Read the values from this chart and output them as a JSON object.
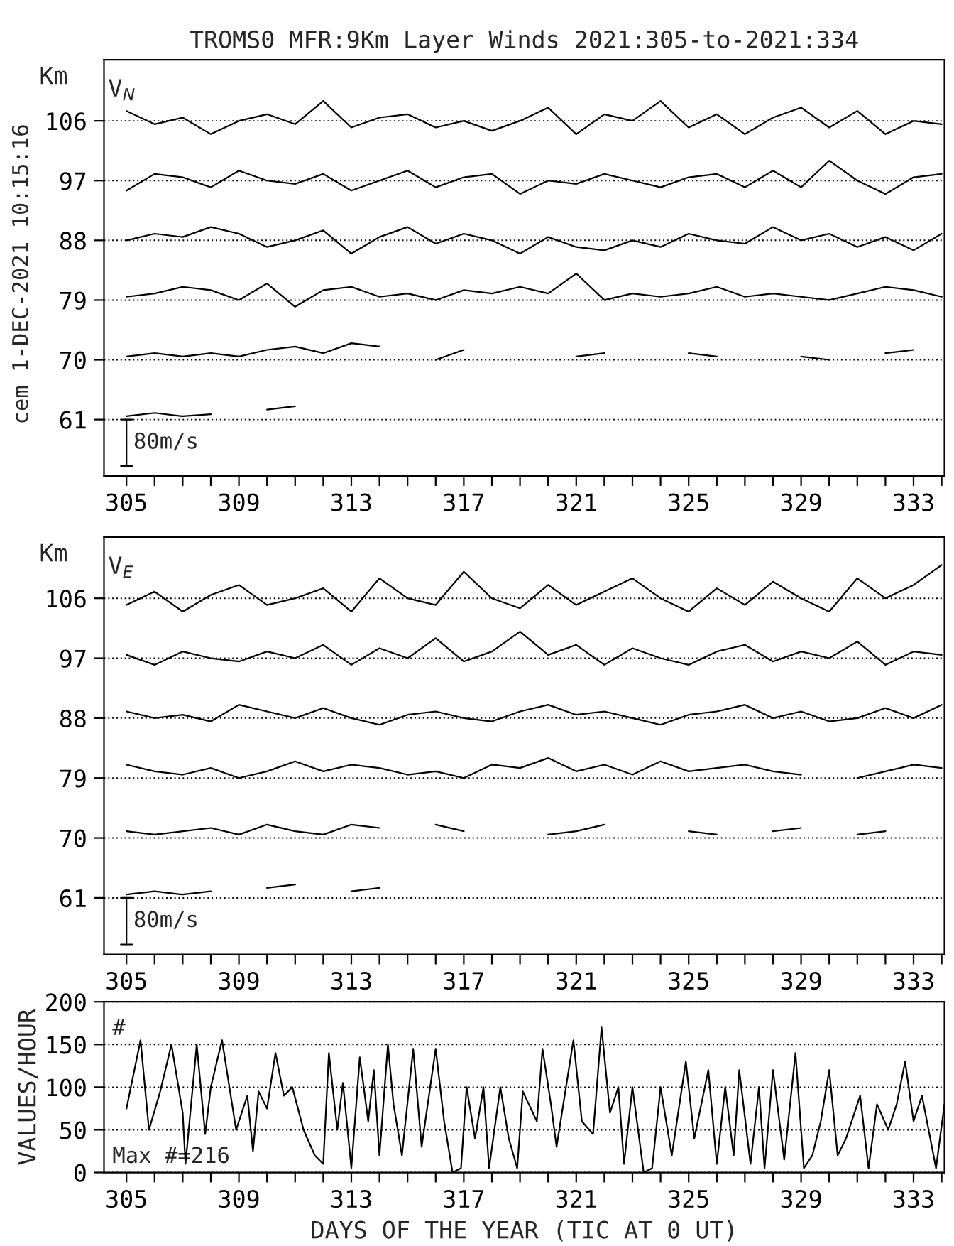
{
  "chart_data": [
    {
      "type": "line",
      "title": "TROMS0 MFR:9Km Layer Winds 2021:305-to-2021:334",
      "ylabel": "Km",
      "annotations": [
        "V$_{N}$",
        "80m/s",
        "cem 1-DEC-2021 10:15:16"
      ],
      "x": [
        305,
        306,
        307,
        308,
        309,
        310,
        311,
        312,
        313,
        314,
        315,
        316,
        317,
        318,
        319,
        320,
        321,
        322,
        323,
        324,
        325,
        326,
        327,
        328,
        329,
        330,
        331,
        332,
        333,
        334
      ],
      "xlim": [
        304.2,
        334.1
      ],
      "xticks": [
        305,
        {
          "value": 306,
          "label": null
        },
        {
          "value": 307,
          "label": null
        },
        {
          "value": 308,
          "label": null
        },
        309,
        {
          "value": 310,
          "label": null
        },
        {
          "value": 311,
          "label": null
        },
        {
          "value": 312,
          "label": null
        },
        313,
        {
          "value": 314,
          "label": null
        },
        {
          "value": 315,
          "label": null
        },
        {
          "value": 316,
          "label": null
        },
        317,
        {
          "value": 318,
          "label": null
        },
        {
          "value": 319,
          "label": null
        },
        {
          "value": 320,
          "label": null
        },
        321,
        {
          "value": 322,
          "label": null
        },
        {
          "value": 323,
          "label": null
        },
        {
          "value": 324,
          "label": null
        },
        325,
        {
          "value": 326,
          "label": null
        },
        {
          "value": 327,
          "label": null
        },
        {
          "value": 328,
          "label": null
        },
        329,
        {
          "value": 330,
          "label": null
        },
        {
          "value": 331,
          "label": null
        },
        {
          "value": 332,
          "label": null
        },
        333,
        {
          "value": 334,
          "label": null
        }
      ],
      "ylim": [
        52.5,
        115.2
      ],
      "yticks": [
        61,
        70,
        79,
        88,
        97,
        106
      ],
      "grid": "y",
      "series": [
        {
          "color": "#000000",
          "values": [
            107.5,
            105.5,
            106.5,
            104,
            106,
            107,
            105.5,
            109,
            105,
            106.5,
            107,
            105,
            106,
            104.5,
            106,
            108,
            104,
            107,
            106,
            109,
            105,
            107,
            104,
            106.5,
            108,
            105,
            107.5,
            104,
            106,
            105.5
          ]
        },
        {
          "color": "#000000",
          "values": [
            95.5,
            98,
            97.5,
            96,
            98.5,
            97,
            96.5,
            98,
            95.5,
            97,
            98.5,
            96,
            97.5,
            98,
            95,
            97,
            96.5,
            98,
            97,
            96,
            97.5,
            98,
            96,
            98.5,
            96,
            100,
            97,
            95,
            97.5,
            98
          ]
        },
        {
          "color": "#000000",
          "values": [
            88,
            89,
            88.5,
            90,
            89,
            87,
            88,
            89.5,
            86,
            88.5,
            90,
            87.5,
            89,
            88,
            86,
            88.5,
            87,
            86.5,
            88,
            87,
            89,
            88,
            87.5,
            90,
            88,
            89,
            87,
            88.5,
            86.5,
            89
          ]
        },
        {
          "color": "#000000",
          "values": [
            79.5,
            80,
            81,
            80.5,
            79,
            81.5,
            78,
            80.5,
            81,
            79.5,
            80,
            79,
            80.5,
            80,
            81,
            80,
            83,
            79,
            80,
            79.5,
            80,
            81,
            79.5,
            80,
            79.5,
            79,
            80,
            81,
            80.5,
            79.5
          ]
        },
        {
          "color": "#000000",
          "values": [
            70.5,
            71,
            70.5,
            71,
            70.5,
            71.5,
            72,
            71,
            72.5,
            72,
            null,
            70,
            71.5,
            null,
            null,
            null,
            70.5,
            71,
            null,
            null,
            71,
            70.5,
            null,
            null,
            70.5,
            70,
            null,
            71,
            71.5,
            null
          ]
        },
        {
          "color": "#000000",
          "values": [
            61.5,
            62,
            61.5,
            61.8,
            null,
            62.5,
            63,
            null,
            null,
            null,
            null,
            null,
            null,
            null,
            null,
            null,
            null,
            null,
            null,
            null,
            null,
            null,
            null,
            null,
            null,
            null,
            null,
            null,
            null,
            null
          ]
        }
      ]
    },
    {
      "type": "line",
      "ylabel": "Km",
      "annotations": [
        "V$_{E}$",
        "80m/s"
      ],
      "x": [
        305,
        306,
        307,
        308,
        309,
        310,
        311,
        312,
        313,
        314,
        315,
        316,
        317,
        318,
        319,
        320,
        321,
        322,
        323,
        324,
        325,
        326,
        327,
        328,
        329,
        330,
        331,
        332,
        333,
        334
      ],
      "xlim": [
        304.2,
        334.1
      ],
      "xticks": [
        305,
        {
          "value": 306,
          "label": null
        },
        {
          "value": 307,
          "label": null
        },
        {
          "value": 308,
          "label": null
        },
        309,
        {
          "value": 310,
          "label": null
        },
        {
          "value": 311,
          "label": null
        },
        {
          "value": 312,
          "label": null
        },
        313,
        {
          "value": 314,
          "label": null
        },
        {
          "value": 315,
          "label": null
        },
        {
          "value": 316,
          "label": null
        },
        317,
        {
          "value": 318,
          "label": null
        },
        {
          "value": 319,
          "label": null
        },
        {
          "value": 320,
          "label": null
        },
        321,
        {
          "value": 322,
          "label": null
        },
        {
          "value": 323,
          "label": null
        },
        {
          "value": 324,
          "label": null
        },
        325,
        {
          "value": 326,
          "label": null
        },
        {
          "value": 327,
          "label": null
        },
        {
          "value": 328,
          "label": null
        },
        329,
        {
          "value": 330,
          "label": null
        },
        {
          "value": 331,
          "label": null
        },
        {
          "value": 332,
          "label": null
        },
        333,
        {
          "value": 334,
          "label": null
        }
      ],
      "ylim": [
        52.5,
        115.2
      ],
      "yticks": [
        61,
        70,
        79,
        88,
        97,
        106
      ],
      "grid": "y",
      "series": [
        {
          "color": "#000000",
          "values": [
            105,
            107,
            104,
            106.5,
            108,
            105,
            106,
            107.5,
            104,
            109,
            106,
            105,
            110,
            106,
            104.5,
            108,
            105,
            107,
            109,
            106,
            104,
            107.5,
            105,
            108.5,
            106,
            104,
            109,
            106,
            108,
            111
          ]
        },
        {
          "color": "#000000",
          "values": [
            97.5,
            96,
            98,
            97,
            96.5,
            98,
            97,
            99,
            96,
            98.5,
            97,
            100,
            96.5,
            98,
            101,
            97.5,
            99,
            96,
            98.5,
            97,
            96,
            98,
            99,
            96.5,
            98,
            97,
            99.5,
            96,
            98,
            97.5
          ]
        },
        {
          "color": "#000000",
          "values": [
            89,
            88,
            88.5,
            87.5,
            90,
            89,
            88,
            89.5,
            88,
            87,
            88.5,
            89,
            88,
            87.5,
            89,
            90,
            88.5,
            89,
            88,
            87,
            88.5,
            89,
            90,
            88,
            89,
            87.5,
            88,
            89.5,
            88,
            90
          ]
        },
        {
          "color": "#000000",
          "values": [
            81,
            80,
            79.5,
            80.5,
            79,
            80,
            81.5,
            80,
            81,
            80.5,
            79.5,
            80,
            79,
            81,
            80.5,
            82,
            80,
            81,
            79.5,
            81.5,
            80,
            80.5,
            81,
            80,
            79.5,
            null,
            79,
            80,
            81,
            80.5
          ]
        },
        {
          "color": "#000000",
          "values": [
            71,
            70.5,
            71,
            71.5,
            70.5,
            72,
            71,
            70.5,
            72,
            71.5,
            null,
            72,
            71,
            null,
            null,
            70.5,
            71,
            72,
            null,
            null,
            71,
            70.5,
            null,
            71,
            71.5,
            null,
            70.5,
            71,
            null,
            null
          ]
        },
        {
          "color": "#000000",
          "values": [
            61.5,
            62,
            61.5,
            62,
            null,
            62.5,
            63,
            null,
            62,
            62.5,
            null,
            null,
            null,
            null,
            null,
            null,
            null,
            null,
            null,
            null,
            null,
            null,
            null,
            null,
            null,
            null,
            null,
            null,
            null,
            null
          ]
        }
      ]
    },
    {
      "type": "line",
      "xlabel": "DAYS OF THE YEAR (TIC AT 0 UT)",
      "ylabel": "VALUES/HOUR",
      "annotations": [
        "#",
        "Max #=216"
      ],
      "xlim": [
        304.2,
        334.1
      ],
      "xticks": [
        305,
        {
          "value": 306,
          "label": null
        },
        {
          "value": 307,
          "label": null
        },
        {
          "value": 308,
          "label": null
        },
        309,
        {
          "value": 310,
          "label": null
        },
        {
          "value": 311,
          "label": null
        },
        {
          "value": 312,
          "label": null
        },
        313,
        {
          "value": 314,
          "label": null
        },
        {
          "value": 315,
          "label": null
        },
        {
          "value": 316,
          "label": null
        },
        317,
        {
          "value": 318,
          "label": null
        },
        {
          "value": 319,
          "label": null
        },
        {
          "value": 320,
          "label": null
        },
        321,
        {
          "value": 322,
          "label": null
        },
        {
          "value": 323,
          "label": null
        },
        {
          "value": 324,
          "label": null
        },
        325,
        {
          "value": 326,
          "label": null
        },
        {
          "value": 327,
          "label": null
        },
        {
          "value": 328,
          "label": null
        },
        329,
        {
          "value": 330,
          "label": null
        },
        {
          "value": 331,
          "label": null
        },
        {
          "value": 332,
          "label": null
        },
        333,
        {
          "value": 334,
          "label": null
        }
      ],
      "ylim": [
        0,
        200
      ],
      "yticks": [
        0,
        50,
        100,
        150,
        200
      ],
      "grid": "y",
      "series": [
        {
          "color": "#000000",
          "x": [
            305.0,
            305.5,
            305.8,
            306.2,
            306.6,
            307.0,
            307.1,
            307.5,
            307.8,
            308.0,
            308.4,
            308.9,
            309.3,
            309.5,
            309.7,
            310.0,
            310.3,
            310.6,
            310.9,
            311.3,
            311.7,
            312.0,
            312.2,
            312.5,
            312.7,
            313.0,
            313.3,
            313.6,
            313.8,
            314.0,
            314.3,
            314.5,
            314.8,
            315.2,
            315.5,
            316.0,
            316.3,
            316.6,
            316.9,
            317.1,
            317.4,
            317.7,
            317.9,
            318.3,
            318.6,
            318.9,
            319.1,
            319.6,
            319.8,
            320.1,
            320.3,
            320.9,
            321.2,
            321.6,
            321.9,
            322.2,
            322.5,
            322.7,
            323.0,
            323.4,
            323.7,
            324.0,
            324.4,
            324.9,
            325.2,
            325.7,
            326.0,
            326.3,
            326.6,
            326.8,
            327.2,
            327.5,
            327.7,
            328.0,
            328.4,
            328.8,
            329.1,
            329.4,
            329.7,
            330.0,
            330.3,
            330.6,
            331.1,
            331.4,
            331.7,
            332.1,
            332.4,
            332.7,
            333.0,
            333.3,
            333.8,
            334.1
          ],
          "values": [
            75,
            155,
            50,
            95,
            150,
            70,
            10,
            150,
            45,
            100,
            155,
            50,
            90,
            25,
            95,
            75,
            140,
            90,
            100,
            50,
            20,
            10,
            140,
            50,
            105,
            5,
            135,
            60,
            120,
            20,
            150,
            80,
            20,
            145,
            30,
            145,
            60,
            0,
            5,
            100,
            40,
            100,
            5,
            100,
            40,
            5,
            95,
            60,
            145,
            80,
            30,
            155,
            60,
            45,
            170,
            70,
            100,
            10,
            100,
            0,
            5,
            100,
            20,
            130,
            40,
            120,
            10,
            100,
            20,
            120,
            10,
            100,
            5,
            120,
            15,
            140,
            5,
            20,
            60,
            120,
            20,
            40,
            90,
            5,
            80,
            50,
            80,
            130,
            60,
            90,
            5,
            80
          ]
        }
      ]
    }
  ]
}
